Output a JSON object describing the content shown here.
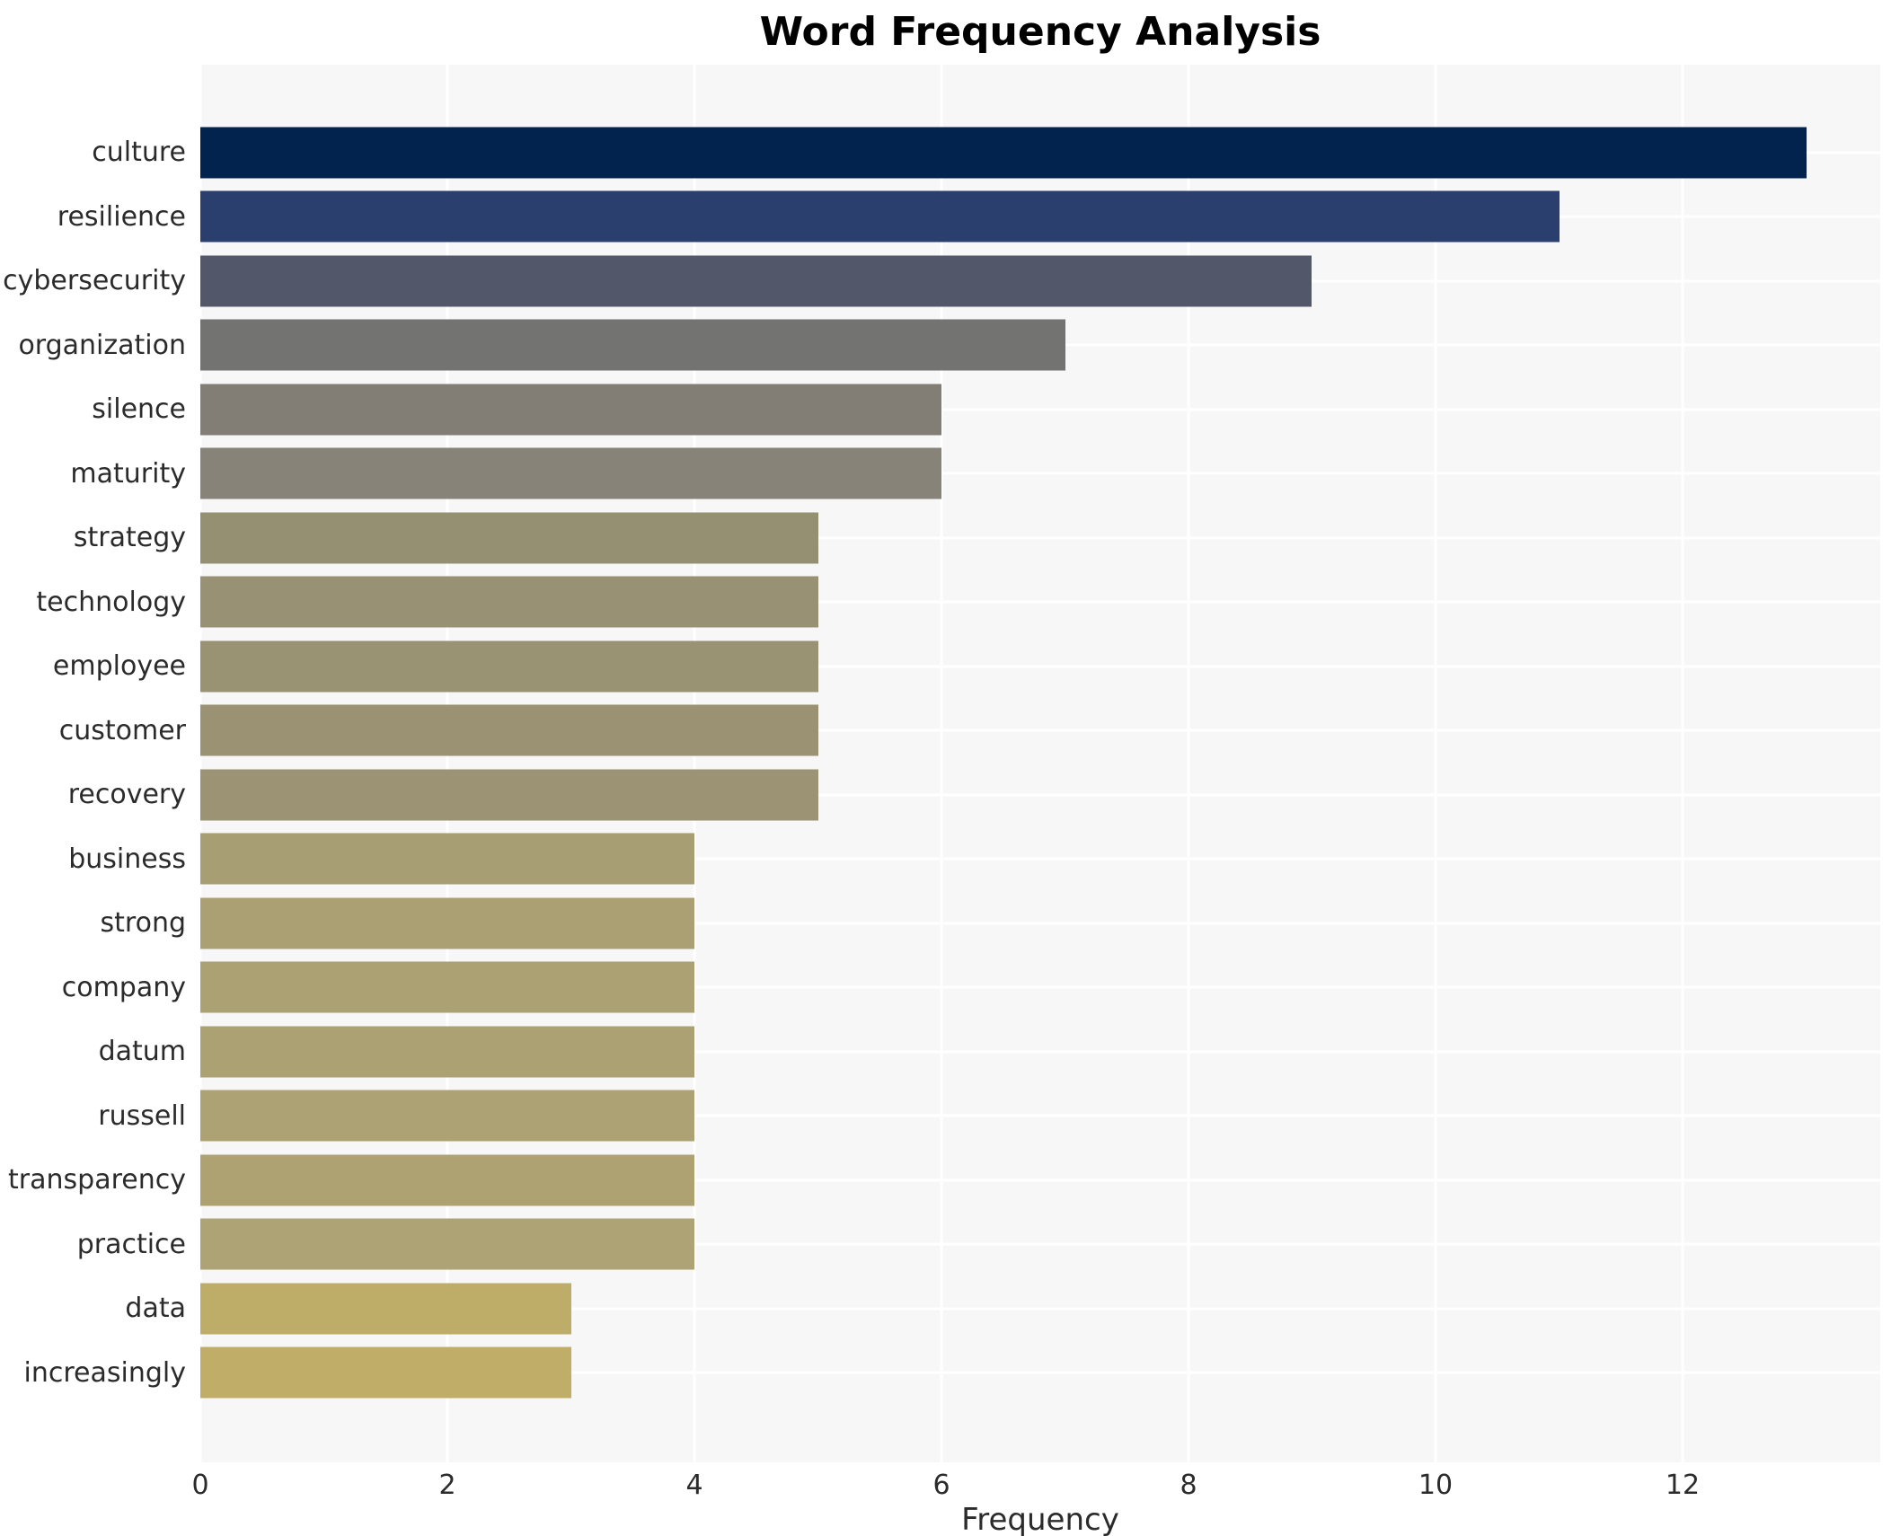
{
  "title": "Word Frequency Analysis",
  "chart_data": {
    "type": "bar",
    "orientation": "horizontal",
    "title": "Word Frequency Analysis",
    "xlabel": "Frequency",
    "ylabel": "",
    "xlim": [
      0,
      13.6
    ],
    "x_ticks": [
      0,
      2,
      4,
      6,
      8,
      10,
      12
    ],
    "grid": true,
    "legend": "none",
    "plot_background": "#f7f7f7",
    "gridline_color": "#ffffff",
    "categories": [
      "culture",
      "resilience",
      "cybersecurity",
      "organization",
      "silence",
      "maturity",
      "strategy",
      "technology",
      "employee",
      "customer",
      "recovery",
      "business",
      "strong",
      "company",
      "datum",
      "russell",
      "transparency",
      "practice",
      "data",
      "increasingly"
    ],
    "values": [
      13,
      11,
      9,
      7,
      6,
      6,
      5,
      5,
      5,
      5,
      5,
      4,
      4,
      4,
      4,
      4,
      4,
      4,
      3,
      3
    ],
    "bar_colors": [
      "#03234f",
      "#2a3f6d",
      "#53576a",
      "#737371",
      "#827e76",
      "#888378",
      "#969073",
      "#989173",
      "#999273",
      "#9a9273",
      "#9b9374",
      "#a89e73",
      "#aaa073",
      "#aba173",
      "#aca173",
      "#ada273",
      "#aea273",
      "#aea374",
      "#beac69",
      "#c0ae68"
    ]
  }
}
